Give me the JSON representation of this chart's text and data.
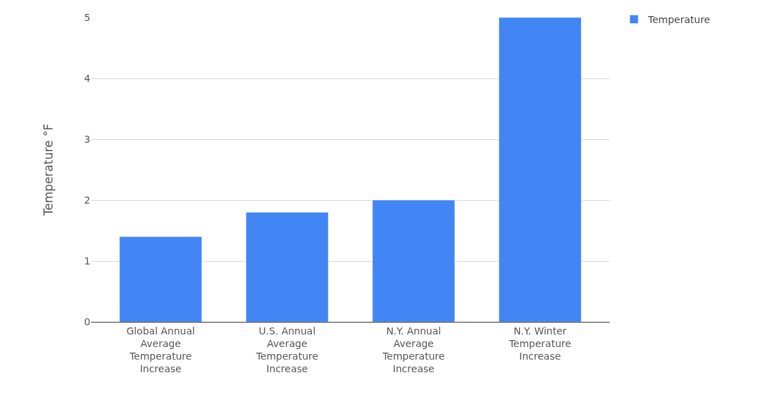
{
  "chart_data": {
    "type": "bar",
    "ylabel": "Temperature °F",
    "categories": [
      "Global Annual Average Temperature Increase",
      "U.S. Annual Average Temperature Increase",
      "N.Y. Annual Average Temperature Increase",
      "N.Y. Winter Temperature Increase"
    ],
    "series": [
      {
        "name": "Temperature",
        "color": "#4285f4",
        "values": [
          1.4,
          1.8,
          2.0,
          5.0
        ]
      }
    ],
    "ylim": [
      0,
      5
    ],
    "yticks": [
      0,
      1,
      2,
      3,
      4,
      5
    ],
    "grid": "y",
    "legend": "top right"
  }
}
